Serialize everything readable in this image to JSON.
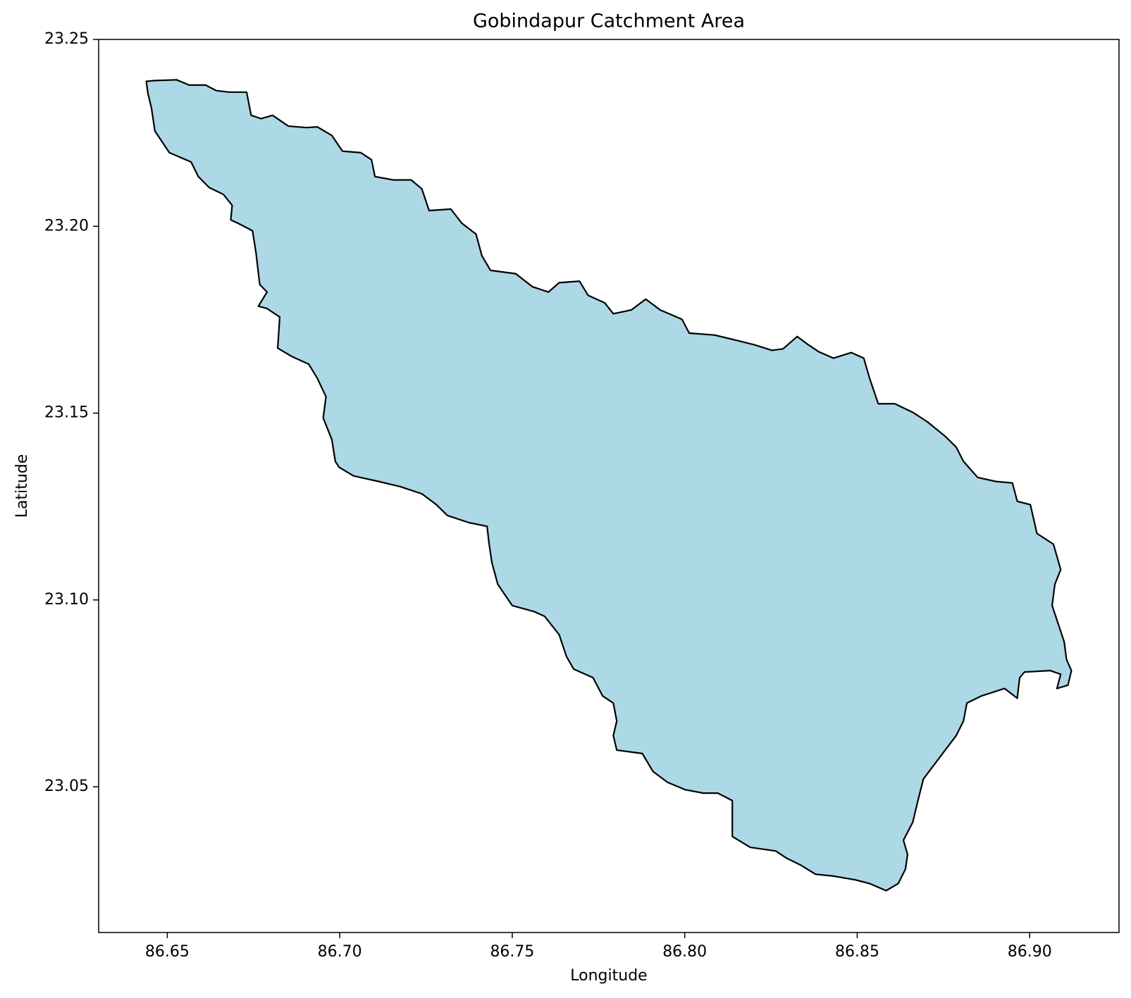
{
  "chart_data": {
    "type": "polygon",
    "title": "Gobindapur Catchment Area",
    "x_label": "Longitude",
    "y_label": "Latitude",
    "color": "#add8e6",
    "edgecolor": "#000000",
    "grid": false,
    "xlim": [
      86.6301,
      86.9259
    ],
    "ylim": [
      23.011,
      23.25
    ],
    "xticks": [
      86.65,
      {
        "value": 86.7,
        "label": "86.70"
      },
      86.75,
      {
        "value": 86.8,
        "label": "86.80"
      },
      86.85,
      {
        "value": 86.9,
        "label": "86.90"
      }
    ],
    "yticks": [
      23.05,
      {
        "value": 23.1,
        "label": "23.10"
      },
      23.15,
      {
        "value": 23.2,
        "label": "23.20"
      },
      23.25
    ],
    "x": [
      86.6439,
      86.6464,
      86.6527,
      86.6563,
      86.6611,
      86.6642,
      86.668,
      86.673,
      86.6743,
      86.6772,
      86.6805,
      86.6851,
      86.6904,
      86.6935,
      86.6977,
      86.7008,
      86.7061,
      86.7092,
      86.7102,
      86.7155,
      86.7207,
      86.7238,
      86.7259,
      86.7322,
      86.7354,
      86.7395,
      86.7412,
      86.7437,
      86.751,
      86.7559,
      86.7605,
      86.7636,
      86.7695,
      86.772,
      86.7768,
      86.7793,
      86.7845,
      86.7887,
      86.7929,
      86.7992,
      86.8013,
      86.8086,
      86.8149,
      86.8201,
      86.8253,
      86.8285,
      86.8326,
      86.8358,
      86.8389,
      86.8431,
      86.8483,
      86.8519,
      86.8536,
      86.8561,
      86.8609,
      86.8661,
      86.8703,
      86.8755,
      86.8787,
      86.8808,
      86.8849,
      86.8902,
      86.895,
      86.8964,
      86.9002,
      86.9021,
      86.9069,
      86.909,
      86.9073,
      86.9065,
      86.9086,
      86.91,
      86.9107,
      86.9121,
      86.9111,
      86.9079,
      86.909,
      86.9059,
      86.8985,
      86.8971,
      86.8964,
      86.8927,
      86.886,
      86.8818,
      86.8808,
      86.8787,
      86.8755,
      86.8724,
      86.8692,
      86.8676,
      86.8661,
      86.8634,
      86.8646,
      86.864,
      86.8619,
      86.8584,
      86.8536,
      86.8494,
      86.8431,
      86.8379,
      86.8337,
      86.8295,
      86.8264,
      86.819,
      86.8138,
      86.8138,
      86.8096,
      86.8054,
      86.8002,
      86.795,
      86.7908,
      86.7877,
      86.7803,
      86.7793,
      86.7803,
      86.7793,
      86.7762,
      86.7734,
      86.7678,
      86.7657,
      86.7636,
      86.7594,
      86.7563,
      86.75,
      86.7483,
      86.7458,
      86.7441,
      86.7433,
      86.7427,
      86.7374,
      86.7312,
      86.728,
      86.7238,
      86.7176,
      86.7113,
      86.704,
      86.6998,
      86.6987,
      86.6977,
      86.6952,
      86.696,
      86.6935,
      86.691,
      86.6862,
      86.682,
      86.6826,
      86.6789,
      86.6764,
      86.6789,
      86.6768,
      86.6757,
      86.6747,
      86.6705,
      86.6684,
      86.6688,
      86.6663,
      86.6621,
      86.659,
      86.6569,
      86.6506,
      86.6464,
      86.6454,
      86.6444
    ],
    "y": [
      23.2388,
      23.239,
      23.2392,
      23.2378,
      23.2378,
      23.2363,
      23.2359,
      23.2359,
      23.2297,
      23.2288,
      23.2297,
      23.2268,
      23.2264,
      23.2266,
      23.2243,
      23.2201,
      23.2197,
      23.2178,
      23.2133,
      23.2124,
      23.2124,
      23.21,
      23.2042,
      23.2046,
      23.2008,
      23.1979,
      23.1921,
      23.1882,
      23.1873,
      23.1838,
      23.1824,
      23.1849,
      23.1853,
      23.1815,
      23.1795,
      23.1766,
      23.1776,
      23.1805,
      23.1776,
      23.1751,
      23.1714,
      23.1709,
      23.1695,
      23.1683,
      23.1668,
      23.1672,
      23.1705,
      23.1683,
      23.1664,
      23.1647,
      23.1662,
      23.1647,
      23.1593,
      23.1525,
      23.1525,
      23.1502,
      23.1477,
      23.1438,
      23.1409,
      23.1371,
      23.1328,
      23.1317,
      23.1313,
      23.1264,
      23.1255,
      23.1178,
      23.1149,
      23.1081,
      23.1042,
      23.0985,
      23.0927,
      23.0888,
      23.084,
      23.0811,
      23.0772,
      23.0763,
      23.0801,
      23.0811,
      23.0807,
      23.0792,
      23.0737,
      23.0763,
      23.0743,
      23.0724,
      23.0676,
      23.0637,
      23.0598,
      23.056,
      23.0521,
      23.0463,
      23.0405,
      23.0357,
      23.0319,
      23.028,
      23.0241,
      23.0222,
      23.0241,
      23.0251,
      23.0261,
      23.0266,
      23.029,
      23.0309,
      23.0328,
      23.0338,
      23.0367,
      23.0463,
      23.0483,
      23.0483,
      23.0492,
      23.0512,
      23.0541,
      23.0589,
      23.0598,
      23.0637,
      23.0676,
      23.0724,
      23.0743,
      23.0792,
      23.0815,
      23.0849,
      23.0907,
      23.0956,
      23.0969,
      23.0985,
      23.1008,
      23.1042,
      23.11,
      23.1149,
      23.1197,
      23.1207,
      23.1226,
      23.1255,
      23.1284,
      23.1303,
      23.1317,
      23.1332,
      23.1355,
      23.1371,
      23.1429,
      23.1487,
      23.1544,
      23.1593,
      23.1631,
      23.1651,
      23.1674,
      23.1757,
      23.178,
      23.1786,
      23.1824,
      23.1844,
      23.193,
      23.1988,
      23.2008,
      23.2017,
      23.2056,
      23.2085,
      23.2104,
      23.2133,
      23.2172,
      23.2197,
      23.2255,
      23.2317,
      23.2355
    ]
  }
}
